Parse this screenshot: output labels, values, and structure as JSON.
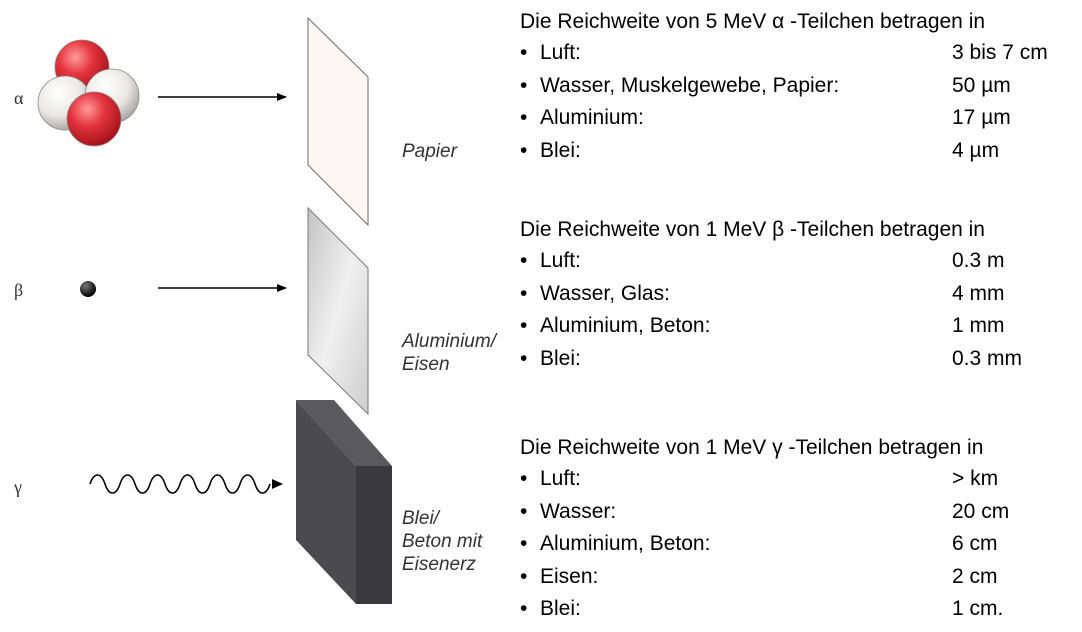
{
  "rays": [
    {
      "symbol": "α",
      "icon": "alpha-particle-icon"
    },
    {
      "symbol": "β",
      "icon": "beta-particle-icon"
    },
    {
      "symbol": "γ",
      "icon": "gamma-wave-icon"
    }
  ],
  "materials": [
    {
      "lines": [
        "Papier"
      ]
    },
    {
      "lines": [
        "Aluminium/",
        "Eisen"
      ]
    },
    {
      "lines": [
        "Blei/",
        "Beton mit",
        "Eisenerz"
      ]
    }
  ],
  "ranges": [
    {
      "heading": "Die Reichweite von 5 MeV α -Teilchen betragen in",
      "rows": [
        {
          "medium": "Luft:",
          "value": "3 bis 7 cm"
        },
        {
          "medium": "Wasser, Muskelgewebe, Papier:",
          "value": "50 µm"
        },
        {
          "medium": "Aluminium:",
          "value": "17 µm"
        },
        {
          "medium": "Blei:",
          "value": "4 µm"
        }
      ]
    },
    {
      "heading": "Die Reichweite von 1 MeV β -Teilchen betragen in",
      "rows": [
        {
          "medium": "Luft:",
          "value": "0.3 m"
        },
        {
          "medium": "Wasser, Glas:",
          "value": "4 mm"
        },
        {
          "medium": "Aluminium, Beton:",
          "value": "1 mm"
        },
        {
          "medium": "Blei:",
          "value": "0.3 mm"
        }
      ]
    },
    {
      "heading": "Die Reichweite von 1 MeV γ -Teilchen betragen in",
      "rows": [
        {
          "medium": "Luft:",
          "value": "> km"
        },
        {
          "medium": "Wasser:",
          "value": "20 cm"
        },
        {
          "medium": "Aluminium, Beton:",
          "value": "6 cm"
        },
        {
          "medium": "Eisen:",
          "value": "2 cm"
        },
        {
          "medium": "Blei:",
          "value": "1 cm."
        }
      ]
    }
  ],
  "bullet": "•",
  "colors": {
    "proton": "#e0303a",
    "neutron": "#ecebe8",
    "paper": "#fdf9f2",
    "aluminium": "#d6d6d6",
    "lead_front": "#4b4b4d",
    "lead_side": "#333335"
  }
}
